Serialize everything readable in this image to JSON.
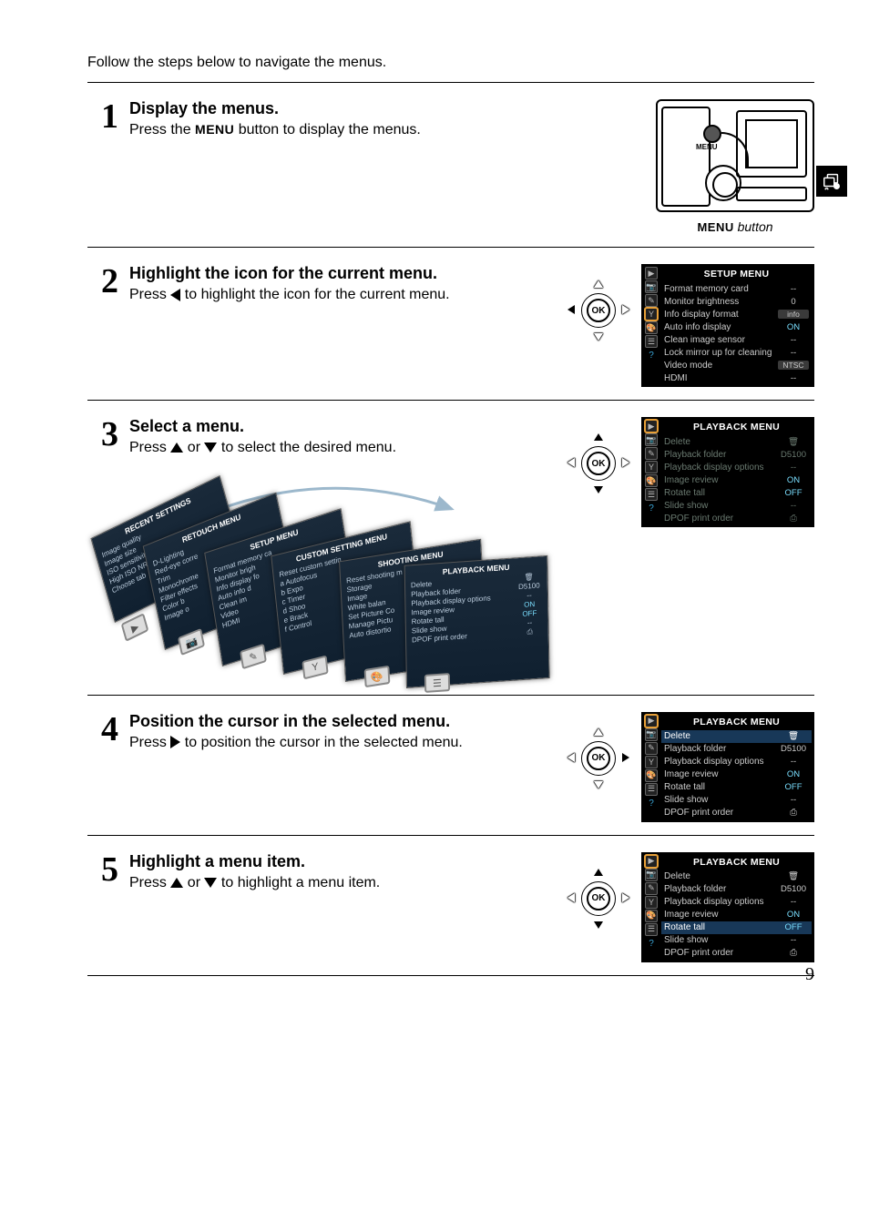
{
  "page_number": "9",
  "intro": "Follow the steps below to navigate the menus.",
  "menu_caption_prefix": "MENU",
  "menu_caption_suffix": "button",
  "ok_label": "OK",
  "steps": [
    {
      "num": "1",
      "title": "Display the menus.",
      "desc_prefix": "Press the ",
      "desc_mid": "MENU",
      "desc_suffix": " button to display the menus."
    },
    {
      "num": "2",
      "title": "Highlight the icon for the current menu.",
      "desc_prefix": "Press ",
      "desc_suffix": " to highlight the icon for the current menu."
    },
    {
      "num": "3",
      "title": "Select a menu.",
      "desc_prefix": "Press ",
      "desc_mid": " or ",
      "desc_suffix": " to select the desired menu."
    },
    {
      "num": "4",
      "title": "Position the cursor in the selected menu.",
      "desc_prefix": "Press ",
      "desc_suffix": " to position the cursor in the selected menu."
    },
    {
      "num": "5",
      "title": "Highlight a menu item.",
      "desc_prefix": "Press ",
      "desc_mid": " or ",
      "desc_suffix": " to highlight a menu item."
    }
  ],
  "setup_menu": {
    "title": "SETUP MENU",
    "items": [
      {
        "label": "Format memory card",
        "val": "--"
      },
      {
        "label": "Monitor brightness",
        "val": "0"
      },
      {
        "label": "Info display format",
        "val": "info",
        "box": true
      },
      {
        "label": "Auto info display",
        "val": "ON",
        "on": true
      },
      {
        "label": "Clean image sensor",
        "val": "--"
      },
      {
        "label": "Lock mirror up for cleaning",
        "val": "--"
      },
      {
        "label": "Video mode",
        "val": "NTSC",
        "box": true
      },
      {
        "label": "HDMI",
        "val": "--"
      }
    ]
  },
  "playback_menu": {
    "title": "PLAYBACK MENU",
    "items": [
      {
        "label": "Delete",
        "val": "🗑"
      },
      {
        "label": "Playback folder",
        "val": "D5100"
      },
      {
        "label": "Playback display options",
        "val": "--"
      },
      {
        "label": "Image review",
        "val": "ON",
        "on": true
      },
      {
        "label": "Rotate tall",
        "val": "OFF",
        "off": true
      },
      {
        "label": "Slide show",
        "val": "--"
      },
      {
        "label": "DPOF print order",
        "val": "⎙"
      }
    ]
  },
  "fan_cards": [
    {
      "title": "RECENT SETTINGS",
      "lines": [
        "Image quality",
        "Image size",
        "ISO sensitivity",
        "High ISO NR",
        "Choose tab"
      ]
    },
    {
      "title": "RETOUCH MENU",
      "lines": [
        "D-Lighting",
        "Red-eye corre",
        "Trim",
        "Monochrome",
        "Filter effects",
        "Color b",
        "Image o"
      ]
    },
    {
      "title": "SETUP MENU",
      "lines": [
        "Format memory ca",
        "Monitor brigh",
        "Info display fo",
        "Auto info d",
        "Clean im",
        "Video",
        "HDMI"
      ]
    },
    {
      "title": "CUSTOM SETTING MENU",
      "lines": [
        "Reset custom settin",
        "a Autofocus",
        "b Expo",
        "c Timer",
        "d Shoo",
        "e Brack",
        "f Control"
      ]
    },
    {
      "title": "SHOOTING MENU",
      "lines": [
        "Reset shooting m",
        "Storage",
        "Image",
        "White balan",
        "Set Picture Co",
        "Manage Pictu",
        "Auto distortio"
      ]
    },
    {
      "title": "PLAYBACK MENU",
      "lines": [
        "Delete",
        "Playback folder",
        "Playback display options",
        "Image review",
        "Rotate tall",
        "Slide show",
        "DPOF print order"
      ],
      "vals": [
        "🗑",
        "D5100",
        "--",
        "ON",
        "OFF",
        "--",
        "⎙"
      ]
    }
  ],
  "icon_glyphs": [
    "▶",
    "📷",
    "✎",
    "Y",
    "🎨",
    "☰",
    "?"
  ],
  "colors": {
    "menu_bg": "#000000",
    "menu_text": "#cccccc",
    "menu_orange": "#a05a1a",
    "highlight_blue": "#183858",
    "value_cyan": "#7adfff",
    "icon_highlight": "#e8a038",
    "faded": "#6a7a70"
  }
}
